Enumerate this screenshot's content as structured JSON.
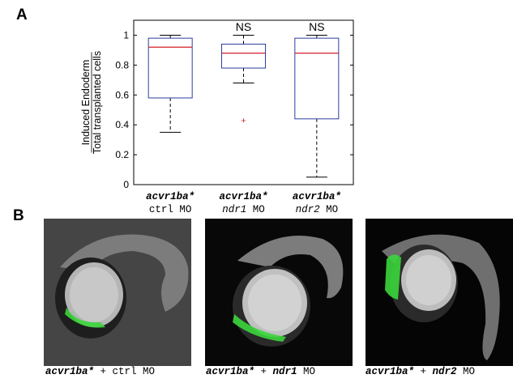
{
  "panels": {
    "a": "A",
    "b": "B"
  },
  "chart_data": {
    "type": "box",
    "title": "",
    "ylabel_line1": "Induced Endoderm",
    "ylabel_line2": "Total transplanted cells",
    "ylim": [
      0,
      1.1
    ],
    "yticks": [
      0,
      0.2,
      0.4,
      0.6,
      0.8,
      1
    ],
    "ytick_labels": [
      "0",
      "0.2",
      "0.4",
      "0.6",
      "0.8",
      "1"
    ],
    "grid": false,
    "categories": [
      {
        "line1": "acvr1ba*",
        "line2": "ctrl MO"
      },
      {
        "line1": "acvr1ba*",
        "line2": "ndr1 MO"
      },
      {
        "line1": "acvr1ba*",
        "line2": "ndr2 MO"
      }
    ],
    "boxes": [
      {
        "whisker_low": 0.35,
        "q1": 0.58,
        "median": 0.92,
        "q3": 0.98,
        "whisker_high": 1.0,
        "outliers": [],
        "annotation": ""
      },
      {
        "whisker_low": 0.68,
        "q1": 0.78,
        "median": 0.88,
        "q3": 0.94,
        "whisker_high": 1.0,
        "outliers": [
          0.43
        ],
        "annotation": "NS"
      },
      {
        "whisker_low": 0.05,
        "q1": 0.44,
        "median": 0.88,
        "q3": 0.98,
        "whisker_high": 1.0,
        "outliers": [],
        "annotation": "NS"
      }
    ],
    "colors": {
      "box": "#2b3f9e",
      "median": "#d4202a",
      "outlier": "#d4202a",
      "whisker": "#000000"
    }
  },
  "images": [
    {
      "prefix": "acvr1ba*",
      "suffix": " + ",
      "morpholino": "ctrl MO",
      "italic_gene": "",
      "tail_text": "ctrl MO",
      "background": "#4a4a4a"
    },
    {
      "prefix": "acvr1ba*",
      "suffix": " + ",
      "morpholino": "ndr1 MO",
      "italic_gene": "ndr1",
      "tail_text": " MO",
      "background": "#080808"
    },
    {
      "prefix": "acvr1ba*",
      "suffix": " + ",
      "morpholino": "ndr2 MO",
      "italic_gene": "ndr2",
      "tail_text": " MO",
      "background": "#050505"
    }
  ]
}
